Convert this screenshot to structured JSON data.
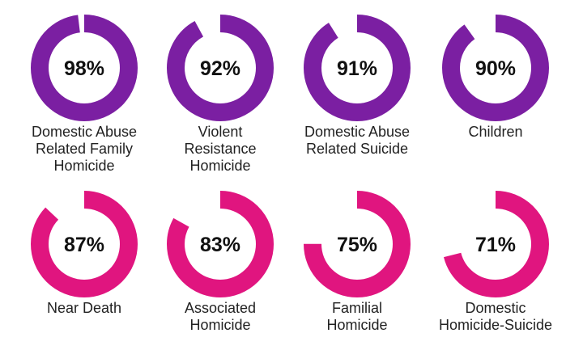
{
  "colors": {
    "row1": "#7b1fa2",
    "row2": "#e0157f",
    "text": "#111111",
    "background": "#ffffff"
  },
  "chart_data": {
    "type": "donut",
    "title": "",
    "items": [
      {
        "label": "Domestic Abuse\nRelated Family\nHomicide",
        "value": 98,
        "display": "98%",
        "color": "#7b1fa2"
      },
      {
        "label": "Violent\nResistance\nHomicide",
        "value": 92,
        "display": "92%",
        "color": "#7b1fa2"
      },
      {
        "label": "Domestic Abuse\nRelated Suicide",
        "value": 91,
        "display": "91%",
        "color": "#7b1fa2"
      },
      {
        "label": "Children",
        "value": 90,
        "display": "90%",
        "color": "#7b1fa2"
      },
      {
        "label": "Near Death",
        "value": 87,
        "display": "87%",
        "color": "#e0157f"
      },
      {
        "label": "Associated\nHomicide",
        "value": 83,
        "display": "83%",
        "color": "#e0157f"
      },
      {
        "label": "Familial\nHomicide",
        "value": 75,
        "display": "75%",
        "color": "#e0157f"
      },
      {
        "label": "Domestic\nHomicide-Suicide",
        "value": 71,
        "display": "71%",
        "color": "#e0157f"
      }
    ]
  }
}
